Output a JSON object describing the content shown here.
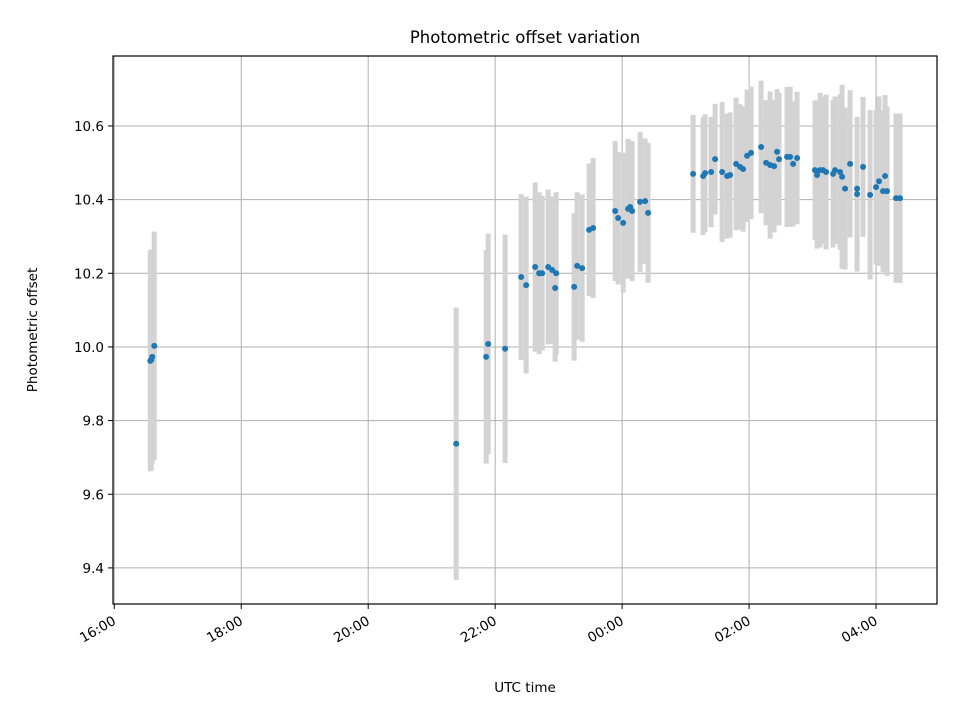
{
  "chart_data": {
    "type": "scatter",
    "title": "Photometric offset variation",
    "xlabel": "UTC time",
    "ylabel": "Photometric offset",
    "x_units": "hours since 00:00 of first day (values above 24 are next day)",
    "xlim": [
      15.98,
      28.96
    ],
    "ylim": [
      9.302,
      10.79
    ],
    "grid": true,
    "x_ticks": [
      16,
      18,
      20,
      22,
      24,
      26,
      28
    ],
    "x_tick_labels": [
      "16:00",
      "18:00",
      "20:00",
      "22:00",
      "00:00",
      "02:00",
      "04:00"
    ],
    "y_ticks": [
      9.4,
      9.6,
      9.8,
      10.0,
      10.2,
      10.4,
      10.6
    ],
    "y_tick_labels": [
      "9.4",
      "9.6",
      "9.8",
      "10.0",
      "10.2",
      "10.4",
      "10.6"
    ],
    "colors": {
      "point": "#1f77b4",
      "errorbar": "#d3d3d3",
      "grid": "#b0b0b0"
    },
    "points": [
      {
        "x": 16.567,
        "y": 9.962,
        "err": 0.3
      },
      {
        "x": 16.583,
        "y": 9.965,
        "err": 0.3
      },
      {
        "x": 16.598,
        "y": 9.973,
        "err": 0.29
      },
      {
        "x": 16.63,
        "y": 10.003,
        "err": 0.31
      },
      {
        "x": 21.386,
        "y": 9.737,
        "err": 0.37
      },
      {
        "x": 21.858,
        "y": 9.973,
        "err": 0.29
      },
      {
        "x": 21.89,
        "y": 10.008,
        "err": 0.3
      },
      {
        "x": 22.157,
        "y": 9.995,
        "err": 0.31
      },
      {
        "x": 22.409,
        "y": 10.19,
        "err": 0.225
      },
      {
        "x": 22.488,
        "y": 10.168,
        "err": 0.24
      },
      {
        "x": 22.63,
        "y": 10.217,
        "err": 0.23
      },
      {
        "x": 22.693,
        "y": 10.2,
        "err": 0.22
      },
      {
        "x": 22.74,
        "y": 10.2,
        "err": 0.21
      },
      {
        "x": 22.835,
        "y": 10.217,
        "err": 0.21
      },
      {
        "x": 22.898,
        "y": 10.209,
        "err": 0.2
      },
      {
        "x": 22.961,
        "y": 10.2,
        "err": 0.22
      },
      {
        "x": 22.945,
        "y": 10.16,
        "err": 0.2
      },
      {
        "x": 23.244,
        "y": 10.163,
        "err": 0.2
      },
      {
        "x": 23.291,
        "y": 10.22,
        "err": 0.2
      },
      {
        "x": 23.37,
        "y": 10.214,
        "err": 0.2
      },
      {
        "x": 23.48,
        "y": 10.318,
        "err": 0.18
      },
      {
        "x": 23.543,
        "y": 10.323,
        "err": 0.19
      },
      {
        "x": 23.89,
        "y": 10.369,
        "err": 0.19
      },
      {
        "x": 23.937,
        "y": 10.35,
        "err": 0.18
      },
      {
        "x": 24.016,
        "y": 10.337,
        "err": 0.19
      },
      {
        "x": 24.094,
        "y": 10.375,
        "err": 0.19
      },
      {
        "x": 24.126,
        "y": 10.38,
        "err": 0.18
      },
      {
        "x": 24.157,
        "y": 10.369,
        "err": 0.19
      },
      {
        "x": 24.283,
        "y": 10.394,
        "err": 0.19
      },
      {
        "x": 24.362,
        "y": 10.396,
        "err": 0.17
      },
      {
        "x": 24.409,
        "y": 10.364,
        "err": 0.19
      },
      {
        "x": 25.118,
        "y": 10.47,
        "err": 0.16
      },
      {
        "x": 25.276,
        "y": 10.464,
        "err": 0.16
      },
      {
        "x": 25.307,
        "y": 10.472,
        "err": 0.16
      },
      {
        "x": 25.402,
        "y": 10.475,
        "err": 0.15
      },
      {
        "x": 25.465,
        "y": 10.51,
        "err": 0.15
      },
      {
        "x": 25.575,
        "y": 10.475,
        "err": 0.19
      },
      {
        "x": 25.654,
        "y": 10.464,
        "err": 0.17
      },
      {
        "x": 25.701,
        "y": 10.467,
        "err": 0.17
      },
      {
        "x": 25.795,
        "y": 10.497,
        "err": 0.18
      },
      {
        "x": 25.858,
        "y": 10.489,
        "err": 0.17
      },
      {
        "x": 25.906,
        "y": 10.483,
        "err": 0.17
      },
      {
        "x": 25.969,
        "y": 10.519,
        "err": 0.18
      },
      {
        "x": 26.031,
        "y": 10.527,
        "err": 0.18
      },
      {
        "x": 26.189,
        "y": 10.543,
        "err": 0.18
      },
      {
        "x": 26.268,
        "y": 10.5,
        "err": 0.17
      },
      {
        "x": 26.331,
        "y": 10.494,
        "err": 0.2
      },
      {
        "x": 26.394,
        "y": 10.491,
        "err": 0.18
      },
      {
        "x": 26.441,
        "y": 10.53,
        "err": 0.17
      },
      {
        "x": 26.472,
        "y": 10.51,
        "err": 0.18
      },
      {
        "x": 26.598,
        "y": 10.516,
        "err": 0.19
      },
      {
        "x": 26.646,
        "y": 10.516,
        "err": 0.19
      },
      {
        "x": 26.693,
        "y": 10.497,
        "err": 0.17
      },
      {
        "x": 26.756,
        "y": 10.513,
        "err": 0.18
      },
      {
        "x": 27.039,
        "y": 10.48,
        "err": 0.19
      },
      {
        "x": 27.071,
        "y": 10.467,
        "err": 0.2
      },
      {
        "x": 27.118,
        "y": 10.48,
        "err": 0.21
      },
      {
        "x": 27.165,
        "y": 10.48,
        "err": 0.2
      },
      {
        "x": 27.213,
        "y": 10.475,
        "err": 0.21
      },
      {
        "x": 27.323,
        "y": 10.47,
        "err": 0.2
      },
      {
        "x": 27.354,
        "y": 10.48,
        "err": 0.2
      },
      {
        "x": 27.433,
        "y": 10.475,
        "err": 0.21
      },
      {
        "x": 27.465,
        "y": 10.462,
        "err": 0.25
      },
      {
        "x": 27.512,
        "y": 10.43,
        "err": 0.22
      },
      {
        "x": 27.591,
        "y": 10.497,
        "err": 0.2
      },
      {
        "x": 27.701,
        "y": 10.43,
        "err": 0.19
      },
      {
        "x": 27.701,
        "y": 10.415,
        "err": 0.21
      },
      {
        "x": 27.795,
        "y": 10.489,
        "err": 0.19
      },
      {
        "x": 27.906,
        "y": 10.413,
        "err": 0.23
      },
      {
        "x": 28.0,
        "y": 10.434,
        "err": 0.21
      },
      {
        "x": 28.047,
        "y": 10.45,
        "err": 0.23
      },
      {
        "x": 28.142,
        "y": 10.464,
        "err": 0.22
      },
      {
        "x": 28.11,
        "y": 10.423,
        "err": 0.22
      },
      {
        "x": 28.173,
        "y": 10.423,
        "err": 0.23
      },
      {
        "x": 28.315,
        "y": 10.404,
        "err": 0.23
      },
      {
        "x": 28.378,
        "y": 10.404,
        "err": 0.23
      }
    ]
  }
}
